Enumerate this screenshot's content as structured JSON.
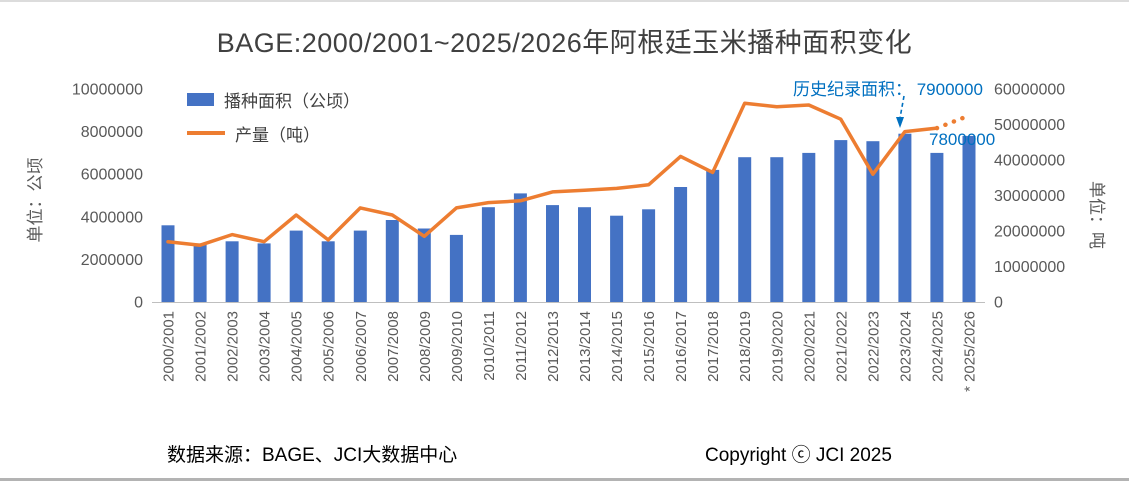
{
  "title": "BAGE:2000/2001~2025/2026年阿根廷玉米播种面积变化",
  "colors": {
    "bar": "#4472C4",
    "line": "#ED7D31",
    "annotation": "#0070C0",
    "axis_text": "#595959",
    "axis_line": "#BFBFBF",
    "title_text": "#404040"
  },
  "legend": {
    "items": [
      {
        "label": "播种面积（公顷）",
        "type": "bar"
      },
      {
        "label": "产量（吨）",
        "type": "line"
      }
    ]
  },
  "annotations": {
    "record": "历史纪录面积： 7900000",
    "forecast_value": "7800000"
  },
  "footer": {
    "source": "数据来源：BAGE、JCI大数据中心",
    "copyright": "Copyright ⓒ JCI 2025"
  },
  "chart_data": {
    "type": "combo-bar-line",
    "title": "BAGE:2000/2001~2025/2026年阿根廷玉米播种面积变化",
    "grid": false,
    "legend_position": "top-left-inside",
    "categories": [
      "2000/2001",
      "2001/2002",
      "2002/2003",
      "2003/2004",
      "2004/2005",
      "2005/2006",
      "2006/2007",
      "2007/2008",
      "2008/2009",
      "2009/2010",
      "2010/2011",
      "2011/2012",
      "2012/2013",
      "2013/2014",
      "2014/2015",
      "2015/2016",
      "2016/2017",
      "2017/2018",
      "2018/2019",
      "2019/2020",
      "2020/2021",
      "2021/2022",
      "2022/2023",
      "2023/2024",
      "2024/2025",
      "* 2025/2026"
    ],
    "series": [
      {
        "name": "播种面积（公顷）",
        "type": "bar",
        "axis": "left",
        "color": "#4472C4",
        "values": [
          3600000,
          2750000,
          2850000,
          2750000,
          3350000,
          2850000,
          3350000,
          3850000,
          3450000,
          3150000,
          4450000,
          5100000,
          4550000,
          4450000,
          4050000,
          4350000,
          5400000,
          6200000,
          6800000,
          6800000,
          7000000,
          7600000,
          7550000,
          7900000,
          7000000,
          7800000
        ]
      },
      {
        "name": "产量（吨）",
        "type": "line",
        "axis": "right",
        "color": "#ED7D31",
        "last_segment_dotted": true,
        "values": [
          17000000,
          16000000,
          19000000,
          17000000,
          24500000,
          17500000,
          26500000,
          24500000,
          18500000,
          26500000,
          28000000,
          28500000,
          31000000,
          31500000,
          32000000,
          33000000,
          41000000,
          36500000,
          56000000,
          55000000,
          55500000,
          51500000,
          36000000,
          48000000,
          49000000,
          52500000
        ]
      }
    ],
    "left_axis": {
      "label": "单位：公顷",
      "min": 0,
      "max": 10000000,
      "tick_step": 2000000,
      "ticks": [
        "10000000",
        "8000000",
        "6000000",
        "4000000",
        "2000000",
        "0"
      ]
    },
    "right_axis": {
      "label": "单位：吨",
      "min": 0,
      "max": 60000000,
      "tick_step": 10000000,
      "ticks": [
        "60000000",
        "50000000",
        "40000000",
        "30000000",
        "20000000",
        "10000000",
        "0"
      ]
    },
    "annotations": [
      {
        "text": "历史纪录面积： 7900000",
        "target_category": "2023/2024"
      },
      {
        "text": "7800000",
        "target_category": "* 2025/2026"
      }
    ]
  }
}
